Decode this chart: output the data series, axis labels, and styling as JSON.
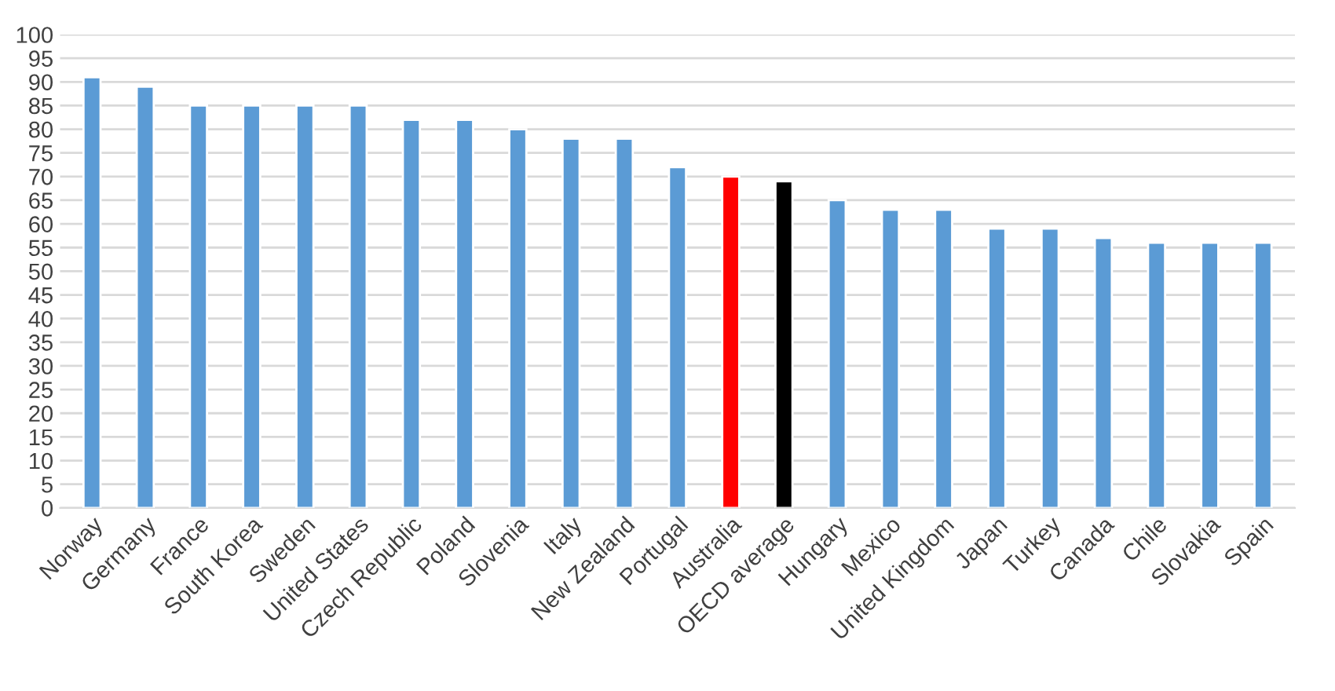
{
  "chart_data": {
    "type": "bar",
    "categories": [
      "Norway",
      "Germany",
      "France",
      "South Korea",
      "Sweden",
      "United States",
      "Czech Republic",
      "Poland",
      "Slovenia",
      "Italy",
      "New Zealand",
      "Portugal",
      "Australia",
      "OECD average",
      "Hungary",
      "Mexico",
      "United Kingdom",
      "Japan",
      "Turkey",
      "Canada",
      "Chile",
      "Slovakia",
      "Spain"
    ],
    "values": [
      91,
      89,
      85,
      85,
      85,
      85,
      82,
      82,
      80,
      78,
      78,
      72,
      70,
      69,
      65,
      63,
      63,
      59,
      59,
      57,
      56,
      56,
      56
    ],
    "colors": [
      "#5b9bd5",
      "#5b9bd5",
      "#5b9bd5",
      "#5b9bd5",
      "#5b9bd5",
      "#5b9bd5",
      "#5b9bd5",
      "#5b9bd5",
      "#5b9bd5",
      "#5b9bd5",
      "#5b9bd5",
      "#5b9bd5",
      "#ff0000",
      "#000000",
      "#5b9bd5",
      "#5b9bd5",
      "#5b9bd5",
      "#5b9bd5",
      "#5b9bd5",
      "#5b9bd5",
      "#5b9bd5",
      "#5b9bd5",
      "#5b9bd5"
    ],
    "ylim": [
      0,
      100
    ],
    "yticks": [
      0,
      5,
      10,
      15,
      20,
      25,
      30,
      35,
      40,
      45,
      50,
      55,
      60,
      65,
      70,
      75,
      80,
      85,
      90,
      95,
      100
    ],
    "grid": "y"
  }
}
